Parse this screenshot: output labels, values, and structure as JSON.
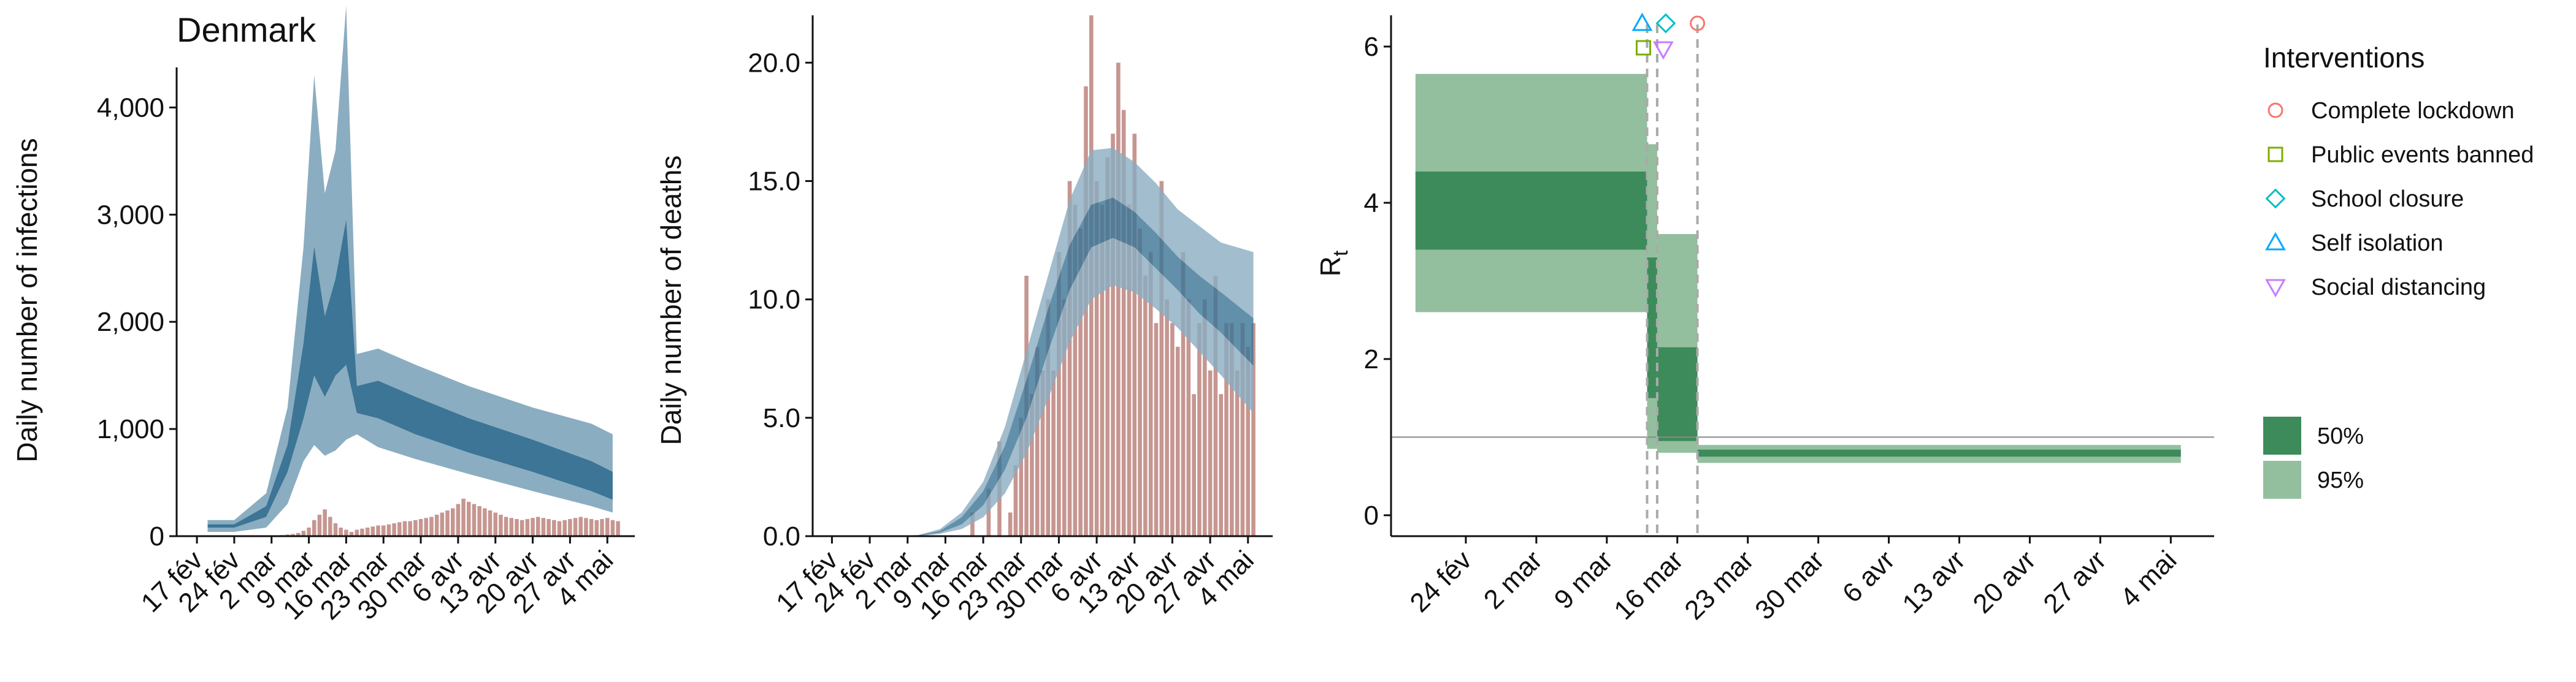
{
  "colors": {
    "ribbon95": "#8badc1",
    "ribbon50": "#3c7596",
    "bars": "#c69691",
    "rt95": "#93bf9e",
    "rt50": "#3d8b5b",
    "refline": "#888888",
    "vline": "#aaaaaa"
  },
  "interventions": {
    "title": "Interventions",
    "items": [
      {
        "label": "Complete lockdown",
        "shape": "circle",
        "color": "#f8766d",
        "date": "2020-03-18"
      },
      {
        "label": "Public events banned",
        "shape": "square",
        "color": "#7cae00",
        "date": "2020-03-13"
      },
      {
        "label": "School closure",
        "shape": "diamond",
        "color": "#00bfc4",
        "date": "2020-03-14"
      },
      {
        "label": "Self isolation",
        "shape": "triangle-up",
        "color": "#00a9ff",
        "date": "2020-03-13"
      },
      {
        "label": "Social distancing",
        "shape": "triangle-down",
        "color": "#c77cff",
        "date": "2020-03-14"
      }
    ]
  },
  "rt_legend": [
    {
      "label": "50%",
      "color": "#3d8b5b"
    },
    {
      "label": "95%",
      "color": "#93bf9e"
    }
  ],
  "chart_data": [
    {
      "type": "area",
      "title": "Denmark",
      "xlabel": "",
      "ylabel": "Daily number of infections",
      "ylim": [
        0,
        4900
      ],
      "yticks": [
        0,
        1000,
        2000,
        3000,
        4000
      ],
      "ytick_labels": [
        "0",
        "1,000",
        "2,000",
        "3,000",
        "4,000"
      ],
      "xlim": [
        "2020-02-14",
        "2020-05-08"
      ],
      "xticks": [
        "2020-02-17",
        "2020-02-24",
        "2020-03-02",
        "2020-03-09",
        "2020-03-16",
        "2020-03-23",
        "2020-03-30",
        "2020-04-06",
        "2020-04-13",
        "2020-04-20",
        "2020-04-27",
        "2020-05-04"
      ],
      "xtick_labels": [
        "17 fév",
        "24 fév",
        "2 mar",
        "9 mar",
        "16 mar",
        "23 mar",
        "30 mar",
        "6 avr",
        "13 avr",
        "20 avr",
        "27 avr",
        "4 mai"
      ],
      "x": [
        "2020-02-19",
        "2020-02-24",
        "2020-03-01",
        "2020-03-05",
        "2020-03-08",
        "2020-03-10",
        "2020-03-12",
        "2020-03-14",
        "2020-03-16",
        "2020-03-18",
        "2020-03-22",
        "2020-03-29",
        "2020-04-08",
        "2020-04-20",
        "2020-05-01",
        "2020-05-05"
      ],
      "band95_lower": [
        40,
        40,
        80,
        300,
        700,
        850,
        750,
        800,
        900,
        950,
        830,
        720,
        580,
        420,
        280,
        220
      ],
      "band95_upper": [
        150,
        150,
        400,
        1200,
        2700,
        4300,
        3200,
        3600,
        4950,
        1700,
        1750,
        1600,
        1400,
        1200,
        1050,
        950
      ],
      "band50_lower": [
        80,
        80,
        180,
        600,
        1100,
        1500,
        1300,
        1500,
        1600,
        1150,
        1100,
        950,
        780,
        600,
        420,
        340
      ],
      "band50_upper": [
        110,
        110,
        280,
        850,
        1800,
        2700,
        2050,
        2400,
        2950,
        1400,
        1450,
        1300,
        1100,
        900,
        700,
        600
      ],
      "bars": {
        "start": "2020-02-27",
        "values": [
          2,
          1,
          0,
          2,
          5,
          8,
          10,
          15,
          20,
          30,
          50,
          80,
          150,
          200,
          250,
          180,
          120,
          80,
          60,
          40,
          60,
          70,
          80,
          90,
          100,
          100,
          110,
          120,
          130,
          140,
          140,
          150,
          160,
          170,
          180,
          200,
          220,
          240,
          260,
          300,
          350,
          320,
          300,
          280,
          260,
          240,
          220,
          200,
          180,
          170,
          160,
          150,
          160,
          170,
          180,
          170,
          160,
          150,
          140,
          150,
          160,
          170,
          180,
          170,
          160,
          150,
          160,
          170,
          150,
          140
        ]
      }
    },
    {
      "type": "area",
      "title": "",
      "xlabel": "",
      "ylabel": "Daily number of deaths",
      "ylim": [
        0,
        22
      ],
      "yticks": [
        0,
        5,
        10,
        15,
        20
      ],
      "ytick_labels": [
        "0.0",
        "5.0",
        "10.0",
        "15.0",
        "20.0"
      ],
      "xlim": [
        "2020-02-14",
        "2020-05-08"
      ],
      "xticks": [
        "2020-02-17",
        "2020-02-24",
        "2020-03-02",
        "2020-03-09",
        "2020-03-16",
        "2020-03-23",
        "2020-03-30",
        "2020-04-06",
        "2020-04-13",
        "2020-04-20",
        "2020-04-27",
        "2020-05-04"
      ],
      "xtick_labels": [
        "17 fév",
        "24 fév",
        "2 mar",
        "9 mar",
        "16 mar",
        "23 mar",
        "30 mar",
        "6 avr",
        "13 avr",
        "20 avr",
        "27 avr",
        "4 mai"
      ],
      "x": [
        "2020-02-28",
        "2020-03-04",
        "2020-03-08",
        "2020-03-12",
        "2020-03-16",
        "2020-03-20",
        "2020-03-24",
        "2020-03-28",
        "2020-04-01",
        "2020-04-05",
        "2020-04-09",
        "2020-04-13",
        "2020-04-17",
        "2020-04-21",
        "2020-04-25",
        "2020-04-29",
        "2020-05-05"
      ],
      "band95_lower": [
        0,
        0,
        0.1,
        0.3,
        0.8,
        1.8,
        3.5,
        5.8,
        8.2,
        10.0,
        10.6,
        10.3,
        9.6,
        8.8,
        7.8,
        6.8,
        5.2
      ],
      "band95_upper": [
        0,
        0.05,
        0.3,
        1.0,
        2.3,
        4.6,
        7.8,
        11.0,
        14.2,
        16.3,
        16.4,
        15.8,
        14.9,
        13.8,
        13.1,
        12.4,
        12.0
      ],
      "band50_lower": [
        0,
        0.02,
        0.15,
        0.5,
        1.3,
        2.8,
        5.0,
        7.8,
        10.4,
        12.2,
        12.6,
        12.2,
        11.3,
        10.4,
        9.4,
        8.6,
        7.2
      ],
      "band50_upper": [
        0,
        0.04,
        0.22,
        0.8,
        1.9,
        3.8,
        6.6,
        9.6,
        12.3,
        14.0,
        14.3,
        13.7,
        12.8,
        11.8,
        11.0,
        10.3,
        9.2
      ],
      "bars": {
        "start": "2020-03-14",
        "values": [
          1,
          0,
          0,
          2,
          0,
          4,
          0,
          1,
          3,
          5,
          11,
          6,
          8,
          7,
          10,
          7,
          12,
          10,
          15,
          14,
          13,
          19,
          22,
          15,
          14,
          16,
          17,
          20,
          18,
          14,
          17,
          13,
          11,
          12,
          9,
          15,
          10,
          9,
          8,
          12,
          10,
          6,
          9,
          10,
          7,
          11,
          6,
          9,
          9,
          7,
          9,
          8,
          9
        ]
      }
    },
    {
      "type": "area",
      "title": "",
      "xlabel": "",
      "ylabel": "R",
      "ylabel_sub": "t",
      "ylim": [
        -0.15,
        6.4
      ],
      "yticks": [
        0,
        2,
        4,
        6
      ],
      "ytick_labels": [
        "0",
        "2",
        "4",
        "6"
      ],
      "xlim": [
        "2020-02-17",
        "2020-05-08"
      ],
      "xticks": [
        "2020-02-24",
        "2020-03-02",
        "2020-03-09",
        "2020-03-16",
        "2020-03-23",
        "2020-03-30",
        "2020-04-06",
        "2020-04-13",
        "2020-04-20",
        "2020-04-27",
        "2020-05-04"
      ],
      "xtick_labels": [
        "24 fév",
        "2 mar",
        "9 mar",
        "16 mar",
        "23 mar",
        "30 mar",
        "6 avr",
        "13 avr",
        "20 avr",
        "27 avr",
        "4 mai"
      ],
      "reference_line": 1,
      "steps": [
        {
          "start": "2020-02-19",
          "end": "2020-03-13",
          "lo95": 2.6,
          "hi95": 5.65,
          "lo50": 3.4,
          "hi50": 4.4
        },
        {
          "start": "2020-03-13",
          "end": "2020-03-14",
          "lo95": 0.85,
          "hi95": 4.75,
          "lo50": 1.5,
          "hi50": 3.3
        },
        {
          "start": "2020-03-14",
          "end": "2020-03-18",
          "lo95": 0.8,
          "hi95": 3.6,
          "lo50": 0.95,
          "hi50": 2.15
        },
        {
          "start": "2020-03-18",
          "end": "2020-05-05",
          "lo95": 0.67,
          "hi95": 0.9,
          "lo50": 0.75,
          "hi50": 0.84
        }
      ]
    }
  ]
}
